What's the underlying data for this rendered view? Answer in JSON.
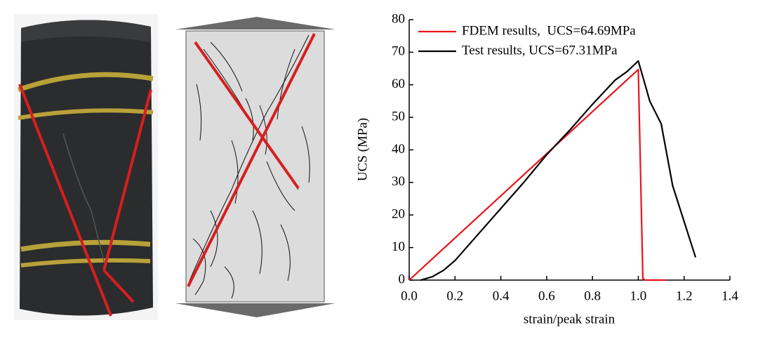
{
  "chart_data": {
    "type": "line",
    "x_label": "strain/peak strain",
    "y_label": "UCS (MPa)",
    "xlim": [
      0,
      1.4
    ],
    "ylim": [
      0,
      80
    ],
    "xticks": [
      {
        "value": 0,
        "label": "0.0"
      },
      0.2,
      0.4,
      0.6,
      0.8,
      {
        "value": 1,
        "label": "1.0"
      },
      1.2,
      1.4
    ],
    "yticks": [
      0,
      10,
      20,
      30,
      40,
      50,
      60,
      70,
      80
    ],
    "series": [
      {
        "name": "FDEM results,  UCS=64.69MPa",
        "color": "#e8141c",
        "x": [
          0,
          1.0,
          1.02,
          1.03,
          1.12
        ],
        "values": [
          0,
          64.69,
          0.5,
          0,
          0
        ]
      },
      {
        "name": "Test results, UCS=67.31MPa",
        "color": "#000000",
        "x": [
          0.05,
          0.1,
          0.15,
          0.2,
          0.3,
          0.4,
          0.5,
          0.6,
          0.7,
          0.8,
          0.9,
          0.95,
          1.0,
          1.03,
          1.05,
          1.1,
          1.15,
          1.2,
          1.25
        ],
        "values": [
          0,
          1,
          3,
          6,
          14,
          22,
          30,
          38.5,
          46,
          54,
          61.5,
          64,
          67.31,
          60,
          55,
          48,
          29,
          18,
          7
        ]
      }
    ]
  }
}
